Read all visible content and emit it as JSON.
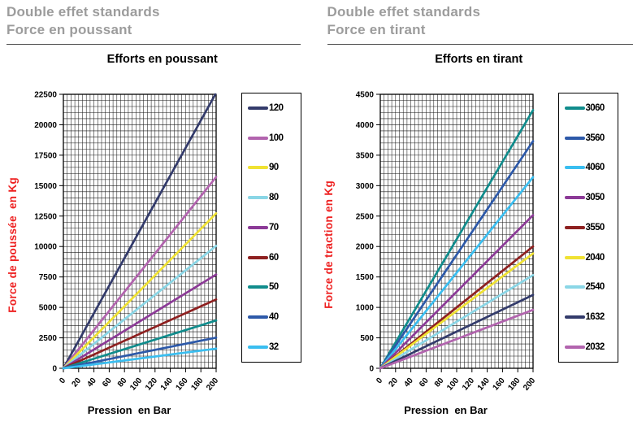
{
  "chart_data": [
    {
      "type": "line",
      "header_line1": "Double effet standards",
      "header_line2": "Force en poussant",
      "title": "Efforts en poussant",
      "ylabel": "Force de poussée  en Kg",
      "xlabel": "Pression  en Bar",
      "xlim": [
        0,
        200
      ],
      "ylim": [
        0,
        22500
      ],
      "x_minor": 5,
      "y_minor": 500,
      "x_ticks": [
        0,
        20,
        40,
        60,
        80,
        100,
        120,
        140,
        160,
        180,
        200
      ],
      "y_ticks": [
        0,
        2500,
        5000,
        7500,
        10000,
        12500,
        15000,
        17500,
        20000,
        22500
      ],
      "grid": true,
      "legend_position": "right",
      "series": [
        {
          "name": "120",
          "color": "#333b6b",
          "x": [
            0,
            200
          ],
          "y": [
            0,
            22620
          ]
        },
        {
          "name": "100",
          "color": "#b264ae",
          "x": [
            0,
            200
          ],
          "y": [
            0,
            15710
          ]
        },
        {
          "name": "90",
          "color": "#f0e233",
          "x": [
            0,
            200
          ],
          "y": [
            0,
            12720
          ]
        },
        {
          "name": "80",
          "color": "#8ad6e6",
          "x": [
            0,
            200
          ],
          "y": [
            0,
            10050
          ]
        },
        {
          "name": "70",
          "color": "#8c3a97",
          "x": [
            0,
            200
          ],
          "y": [
            0,
            7700
          ]
        },
        {
          "name": "60",
          "color": "#8e2020",
          "x": [
            0,
            200
          ],
          "y": [
            0,
            5655
          ]
        },
        {
          "name": "50",
          "color": "#108c8c",
          "x": [
            0,
            200
          ],
          "y": [
            0,
            3925
          ]
        },
        {
          "name": "40",
          "color": "#2d59a9",
          "x": [
            0,
            200
          ],
          "y": [
            0,
            2515
          ]
        },
        {
          "name": "32",
          "color": "#3abef0",
          "x": [
            0,
            200
          ],
          "y": [
            0,
            1610
          ]
        }
      ]
    },
    {
      "type": "line",
      "header_line1": "Double effet standards",
      "header_line2": "Force en tirant",
      "title": "Efforts en tirant",
      "ylabel": "Force de traction en Kg",
      "xlabel": "Pression  en Bar",
      "xlim": [
        0,
        200
      ],
      "ylim": [
        0,
        4500
      ],
      "x_minor": 5,
      "y_minor": 100,
      "x_ticks": [
        0,
        20,
        40,
        60,
        80,
        100,
        120,
        140,
        160,
        180,
        200
      ],
      "y_ticks": [
        0,
        500,
        1000,
        1500,
        2000,
        2500,
        3000,
        3500,
        4000,
        4500
      ],
      "grid": true,
      "legend_position": "right",
      "series": [
        {
          "name": "3060",
          "color": "#108c8c",
          "x": [
            0,
            200
          ],
          "y": [
            0,
            4240
          ]
        },
        {
          "name": "3560",
          "color": "#2d59a9",
          "x": [
            0,
            200
          ],
          "y": [
            0,
            3730
          ]
        },
        {
          "name": "4060",
          "color": "#3abef0",
          "x": [
            0,
            200
          ],
          "y": [
            0,
            3140
          ]
        },
        {
          "name": "3050",
          "color": "#8c3a97",
          "x": [
            0,
            200
          ],
          "y": [
            0,
            2515
          ]
        },
        {
          "name": "3550",
          "color": "#8e2020",
          "x": [
            0,
            200
          ],
          "y": [
            0,
            2000
          ]
        },
        {
          "name": "2040",
          "color": "#f0e233",
          "x": [
            0,
            200
          ],
          "y": [
            0,
            1885
          ]
        },
        {
          "name": "2540",
          "color": "#8ad6e6",
          "x": [
            0,
            200
          ],
          "y": [
            0,
            1530
          ]
        },
        {
          "name": "1632",
          "color": "#333b6b",
          "x": [
            0,
            200
          ],
          "y": [
            0,
            1205
          ]
        },
        {
          "name": "2032",
          "color": "#b264ae",
          "x": [
            0,
            200
          ],
          "y": [
            0,
            960
          ]
        }
      ]
    }
  ]
}
